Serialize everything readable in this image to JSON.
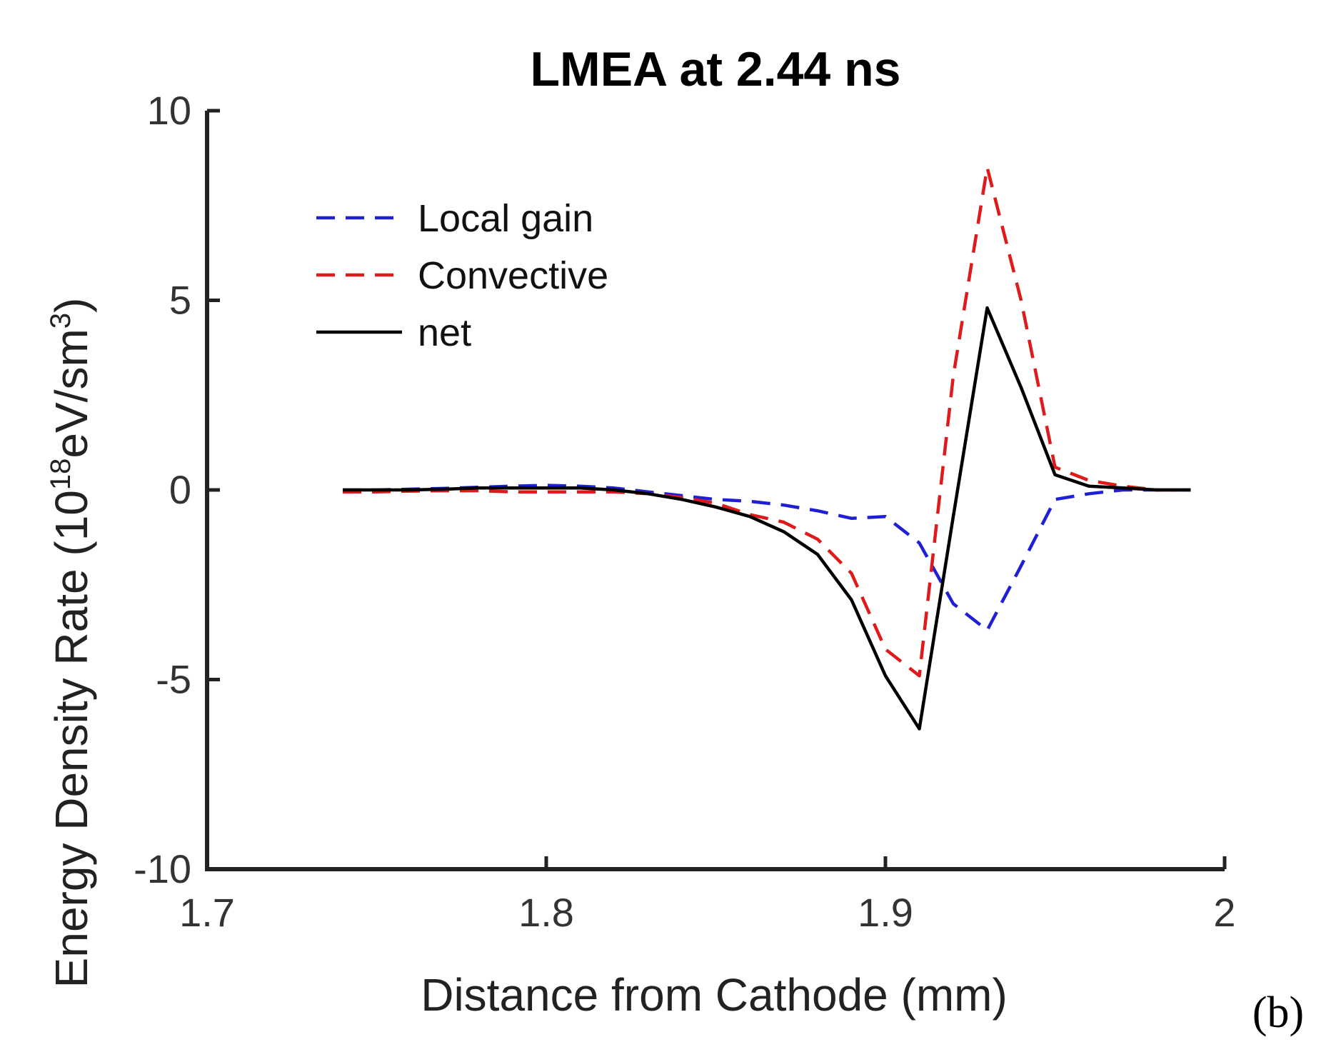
{
  "panel_label": "(b)",
  "chart_data": {
    "type": "line",
    "title": "LMEA at 2.44 ns",
    "xlabel": "Distance from Cathode (mm)",
    "ylabel": {
      "prefix": "Energy Density Rate (10",
      "exp1": "18",
      "middle": "eV/sm",
      "exp2": "3",
      "suffix": ")"
    },
    "xlim": [
      1.7,
      2.0
    ],
    "ylim": [
      -10,
      10
    ],
    "xticks": [
      1.7,
      1.8,
      1.9,
      2.0
    ],
    "xtick_labels": [
      "1.7",
      "1.8",
      "1.9",
      "2"
    ],
    "yticks": [
      10,
      5,
      0,
      -5,
      -10
    ],
    "ytick_labels": [
      "10",
      "5",
      "0",
      "-5",
      "-10"
    ],
    "grid": false,
    "legend_position": "top-left",
    "x": [
      1.74,
      1.75,
      1.76,
      1.77,
      1.78,
      1.79,
      1.8,
      1.81,
      1.82,
      1.83,
      1.84,
      1.85,
      1.86,
      1.87,
      1.88,
      1.89,
      1.9,
      1.91,
      1.92,
      1.93,
      1.94,
      1.95,
      1.96,
      1.97,
      1.98,
      1.99
    ],
    "series": [
      {
        "name": "Local gain",
        "color": "#1f1fd6",
        "dash": "dashed",
        "values": [
          0.0,
          0.0,
          0.02,
          0.04,
          0.07,
          0.1,
          0.12,
          0.1,
          0.05,
          -0.05,
          -0.15,
          -0.25,
          -0.3,
          -0.4,
          -0.55,
          -0.75,
          -0.7,
          -1.4,
          -3.0,
          -3.7,
          -2.0,
          -0.25,
          -0.1,
          0.0,
          0.0,
          0.0
        ]
      },
      {
        "name": "Convective",
        "color": "#e01a1a",
        "dash": "dashed",
        "values": [
          -0.05,
          -0.05,
          -0.03,
          -0.02,
          -0.02,
          -0.05,
          -0.05,
          -0.05,
          -0.05,
          -0.1,
          -0.2,
          -0.35,
          -0.65,
          -0.85,
          -1.3,
          -2.2,
          -4.2,
          -4.9,
          3.0,
          8.5,
          5.0,
          0.6,
          0.25,
          0.1,
          0.0,
          0.0
        ]
      },
      {
        "name": "net",
        "color": "#000000",
        "dash": "solid",
        "values": [
          0.0,
          0.0,
          0.0,
          0.02,
          0.05,
          0.05,
          0.05,
          0.05,
          0.0,
          -0.1,
          -0.25,
          -0.45,
          -0.7,
          -1.1,
          -1.7,
          -2.9,
          -4.9,
          -6.3,
          -0.7,
          4.8,
          2.7,
          0.4,
          0.1,
          0.05,
          0.0,
          0.0
        ]
      }
    ]
  }
}
